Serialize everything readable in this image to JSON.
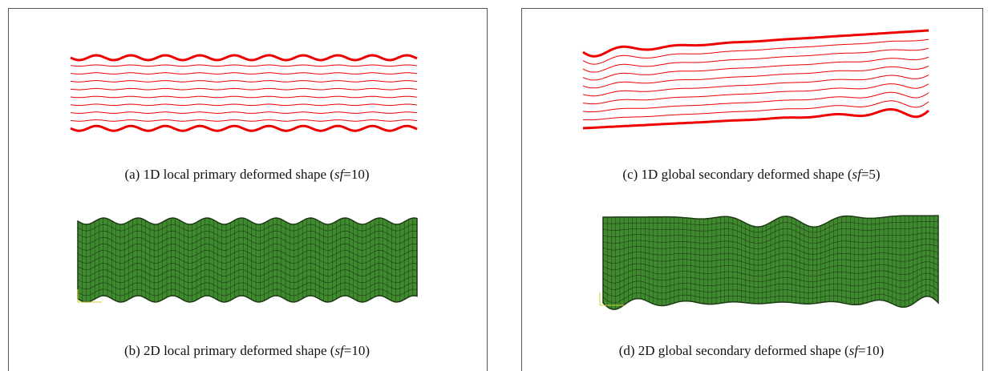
{
  "subfigures": [
    {
      "caption_before": "(a) 1D local primary deformed shape (",
      "symbol": "sf",
      "caption_after": "=10)"
    },
    {
      "caption_before": "(b) 2D local primary deformed shape (",
      "symbol": "sf",
      "caption_after": "=10)"
    },
    {
      "caption_before": "(c) 1D global secondary deformed shape (",
      "symbol": "sf",
      "caption_after": "=5)"
    },
    {
      "caption_before": "(d) 2D global secondary deformed shape (",
      "symbol": "sf",
      "caption_after": "=10)"
    }
  ]
}
